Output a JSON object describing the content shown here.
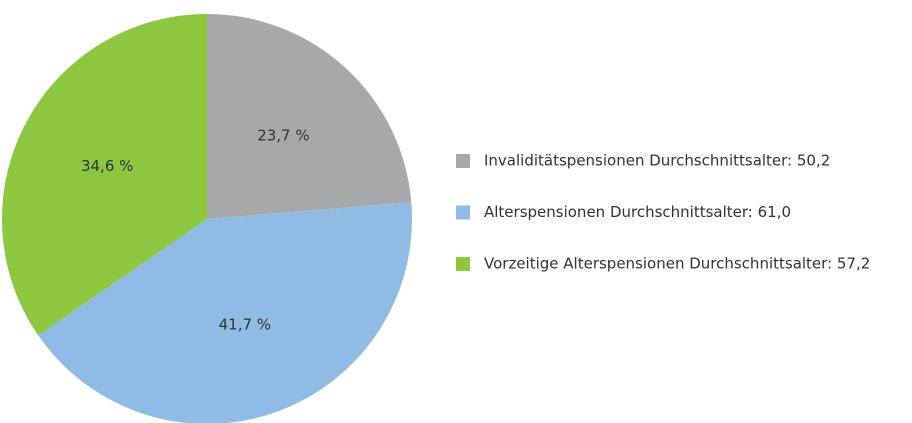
{
  "chart_data": {
    "type": "pie",
    "categories": [
      "Invaliditätspensionen Durchschnittsalter: 50,2",
      "Alterspensionen Durchschnittsalter: 61,0",
      "Vorzeitige Alterspensionen Durchschnittsalter: 57,2"
    ],
    "values": [
      23.7,
      41.7,
      34.6
    ],
    "value_labels": [
      "23,7 %",
      "41,7 %",
      "34,6 %"
    ],
    "colors": [
      "#a7a8aa",
      "#8fbbe4",
      "#8dc63f"
    ],
    "legend": "right"
  }
}
